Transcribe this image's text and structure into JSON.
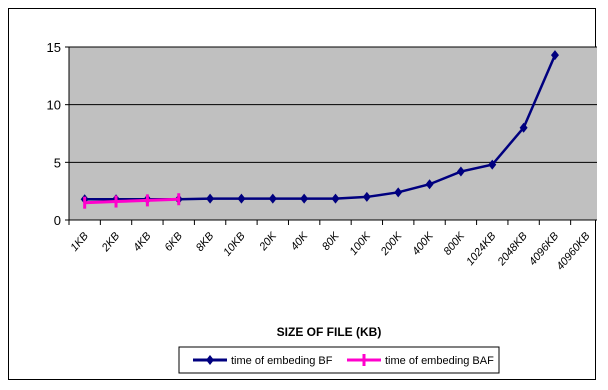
{
  "chart_data": {
    "type": "line",
    "title": "",
    "xlabel": "SIZE OF FILE (KB)",
    "ylabel": "",
    "ylim": [
      0,
      15
    ],
    "yticks": [
      0,
      5,
      10,
      15
    ],
    "grid": true,
    "legend_position": "bottom",
    "categories": [
      "1KB",
      "2KB",
      "4KB",
      "6KB",
      "8KB",
      "10KB",
      "20K",
      "40K",
      "80K",
      "100K",
      "200K",
      "400K",
      "800K",
      "1024KB",
      "2048KB",
      "4096KB",
      "40960KB"
    ],
    "series": [
      {
        "name": "time of embeding BF",
        "color": "#00007f",
        "marker": "diamond",
        "values": [
          1.8,
          1.8,
          1.8,
          1.8,
          1.85,
          1.85,
          1.85,
          1.85,
          1.85,
          2.0,
          2.4,
          3.1,
          4.2,
          4.8,
          8.0,
          14.3,
          null
        ]
      },
      {
        "name": "time of embeding BAF",
        "color": "#ff00cc",
        "marker": "square",
        "values": [
          1.5,
          1.6,
          1.7,
          1.8,
          null,
          null,
          null,
          null,
          null,
          null,
          null,
          null,
          null,
          null,
          null,
          null,
          null
        ]
      }
    ]
  }
}
